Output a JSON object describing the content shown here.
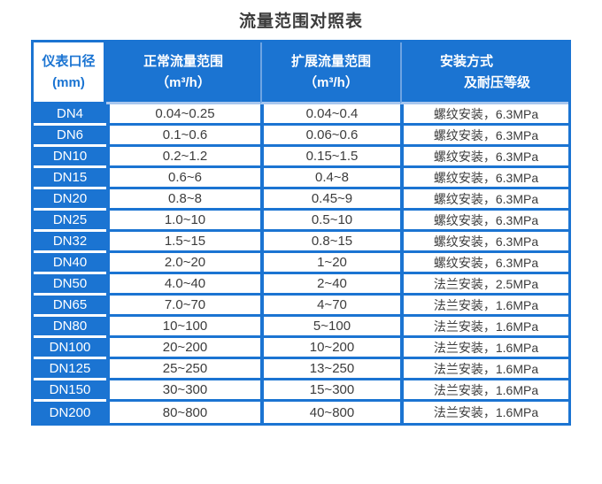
{
  "title": "流量范围对照表",
  "colors": {
    "primary_blue": "#1b74d2",
    "header_divider_light": "#a9c7ee",
    "text_dark": "#3c3c3c"
  },
  "table": {
    "headers": [
      {
        "line1": "仪表口径",
        "line2": "(mm)"
      },
      {
        "line1": "正常流量范围",
        "line2": "（m³/h）"
      },
      {
        "line1": "扩展流量范围",
        "line2": "（m³/h）"
      },
      {
        "line1": "安装方式",
        "line2": "及耐压等级"
      }
    ],
    "rows": [
      {
        "diameter": "DN4",
        "normal_range": "0.04~0.25",
        "extended_range": "0.04~0.4",
        "installation": "螺纹安装，6.3MPa"
      },
      {
        "diameter": "DN6",
        "normal_range": "0.1~0.6",
        "extended_range": "0.06~0.6",
        "installation": "螺纹安装，6.3MPa"
      },
      {
        "diameter": "DN10",
        "normal_range": "0.2~1.2",
        "extended_range": "0.15~1.5",
        "installation": "螺纹安装，6.3MPa"
      },
      {
        "diameter": "DN15",
        "normal_range": "0.6~6",
        "extended_range": "0.4~8",
        "installation": "螺纹安装，6.3MPa"
      },
      {
        "diameter": "DN20",
        "normal_range": "0.8~8",
        "extended_range": "0.45~9",
        "installation": "螺纹安装，6.3MPa"
      },
      {
        "diameter": "DN25",
        "normal_range": "1.0~10",
        "extended_range": "0.5~10",
        "installation": "螺纹安装，6.3MPa"
      },
      {
        "diameter": "DN32",
        "normal_range": "1.5~15",
        "extended_range": "0.8~15",
        "installation": "螺纹安装，6.3MPa"
      },
      {
        "diameter": "DN40",
        "normal_range": "2.0~20",
        "extended_range": "1~20",
        "installation": "螺纹安装，6.3MPa"
      },
      {
        "diameter": "DN50",
        "normal_range": "4.0~40",
        "extended_range": "2~40",
        "installation": "法兰安装，2.5MPa"
      },
      {
        "diameter": "DN65",
        "normal_range": "7.0~70",
        "extended_range": "4~70",
        "installation": "法兰安装，1.6MPa"
      },
      {
        "diameter": "DN80",
        "normal_range": "10~100",
        "extended_range": "5~100",
        "installation": "法兰安装，1.6MPa"
      },
      {
        "diameter": "DN100",
        "normal_range": "20~200",
        "extended_range": "10~200",
        "installation": "法兰安装，1.6MPa"
      },
      {
        "diameter": "DN125",
        "normal_range": "25~250",
        "extended_range": "13~250",
        "installation": "法兰安装，1.6MPa"
      },
      {
        "diameter": "DN150",
        "normal_range": "30~300",
        "extended_range": "15~300",
        "installation": "法兰安装，1.6MPa"
      },
      {
        "diameter": "DN200",
        "normal_range": "80~800",
        "extended_range": "40~800",
        "installation": "法兰安装，1.6MPa"
      }
    ]
  }
}
